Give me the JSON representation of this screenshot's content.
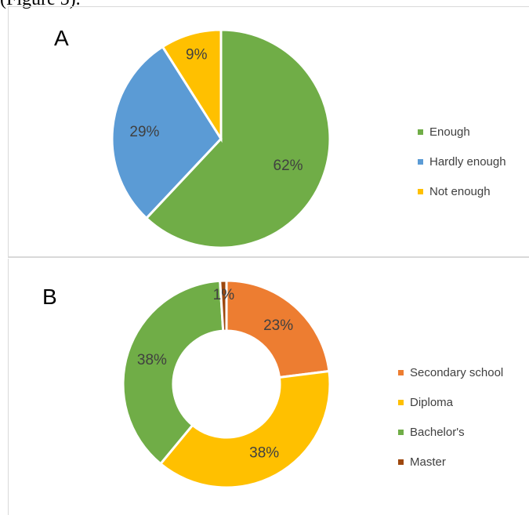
{
  "caption": "(Figure 5).",
  "chart_data": [
    {
      "type": "pie",
      "panel": "A",
      "categories": [
        "Enough",
        "Hardly enough",
        "Not enough"
      ],
      "values": [
        62,
        29,
        9
      ],
      "labels": [
        "62%",
        "29%",
        "9%"
      ],
      "colors": [
        "#70AD47",
        "#5B9BD5",
        "#FFC000"
      ],
      "legend_placement": "right"
    },
    {
      "type": "pie",
      "variant": "donut",
      "panel": "B",
      "categories": [
        "Secondary school",
        "Diploma",
        "Bachelor's",
        "Master"
      ],
      "values": [
        23,
        38,
        38,
        1
      ],
      "labels": [
        "23%",
        "38%",
        "38%",
        "1%"
      ],
      "colors": [
        "#ED7D31",
        "#FFC000",
        "#70AD47",
        "#9E480E"
      ],
      "legend_placement": "right"
    }
  ]
}
